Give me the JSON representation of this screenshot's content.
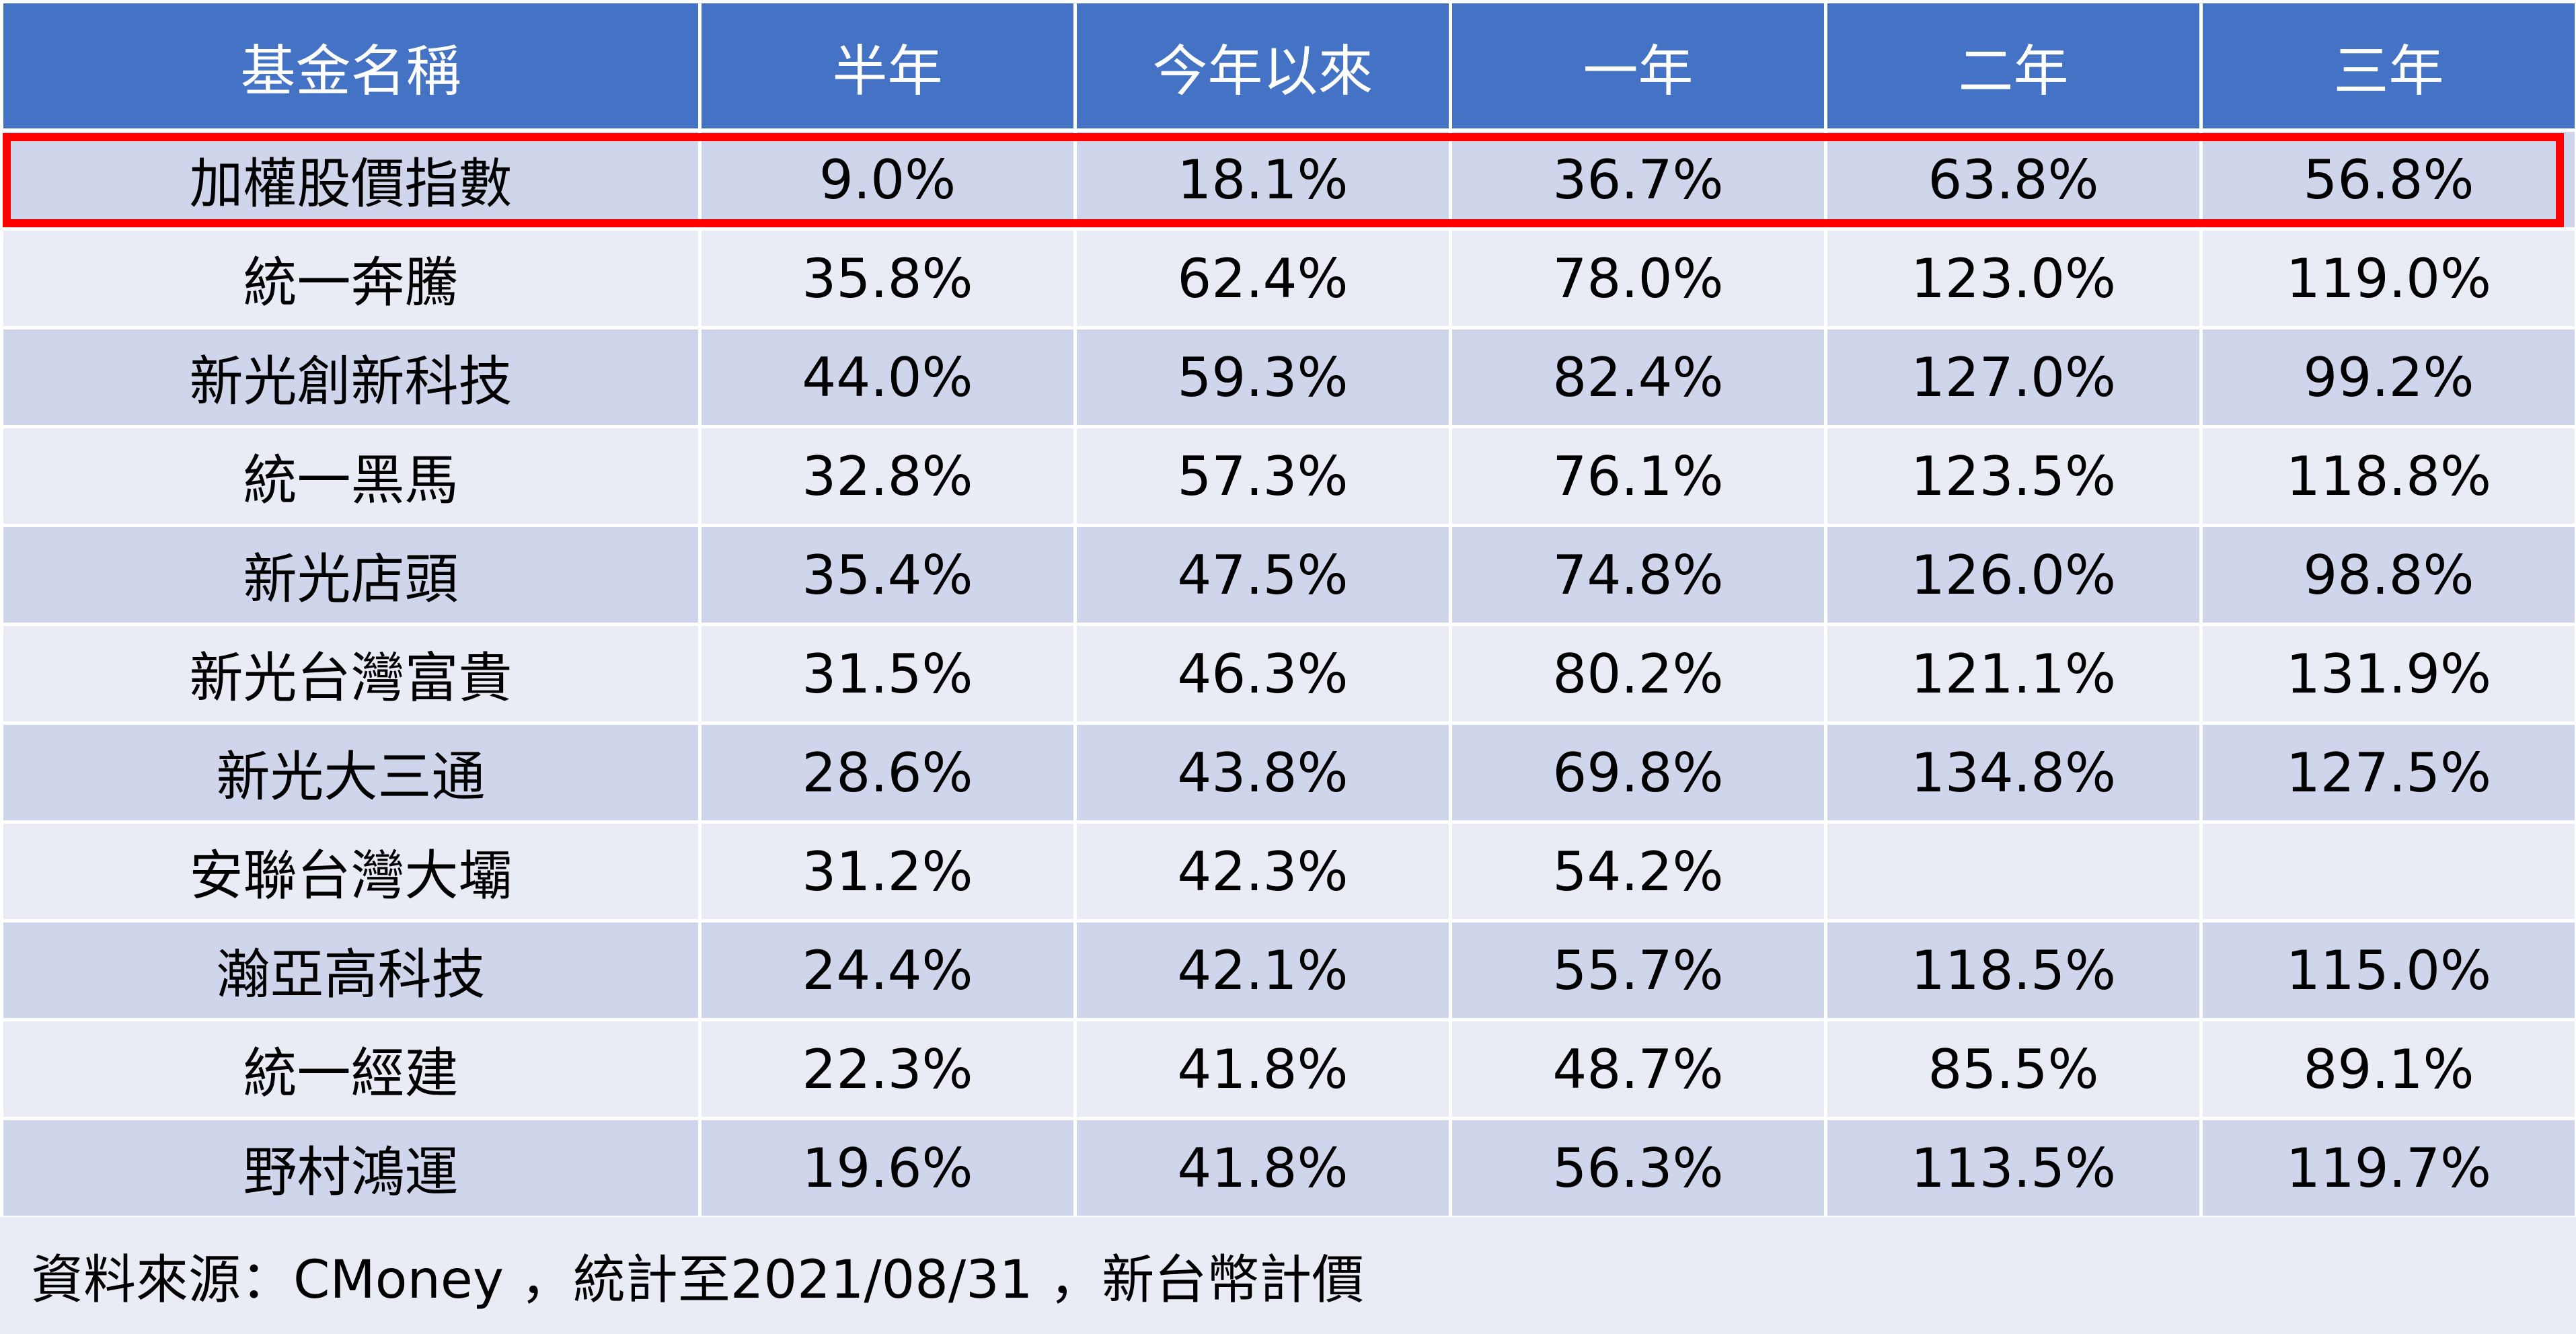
{
  "table": {
    "headers": [
      "基金名稱",
      "半年",
      "今年以來",
      "一年",
      "二年",
      "三年"
    ],
    "rows": [
      [
        "加權股價指數",
        "9.0%",
        "18.1%",
        "36.7%",
        "63.8%",
        "56.8%"
      ],
      [
        "統一奔騰",
        "35.8%",
        "62.4%",
        "78.0%",
        "123.0%",
        "119.0%"
      ],
      [
        "新光創新科技",
        "44.0%",
        "59.3%",
        "82.4%",
        "127.0%",
        "99.2%"
      ],
      [
        "統一黑馬",
        "32.8%",
        "57.3%",
        "76.1%",
        "123.5%",
        "118.8%"
      ],
      [
        "新光店頭",
        "35.4%",
        "47.5%",
        "74.8%",
        "126.0%",
        "98.8%"
      ],
      [
        "新光台灣富貴",
        "31.5%",
        "46.3%",
        "80.2%",
        "121.1%",
        "131.9%"
      ],
      [
        "新光大三通",
        "28.6%",
        "43.8%",
        "69.8%",
        "134.8%",
        "127.5%"
      ],
      [
        "安聯台灣大壩",
        "31.2%",
        "42.3%",
        "54.2%",
        "",
        ""
      ],
      [
        "瀚亞高科技",
        "24.4%",
        "42.1%",
        "55.7%",
        "118.5%",
        "115.0%"
      ],
      [
        "統一經建",
        "22.3%",
        "41.8%",
        "48.7%",
        "85.5%",
        "89.1%"
      ],
      [
        "野村鴻運",
        "19.6%",
        "41.8%",
        "56.3%",
        "113.5%",
        "119.7%"
      ]
    ],
    "highlighted_row": 0
  },
  "footer": {
    "source_note": "資料來源：CMoney ，統計至2021/08/31 ，新台幣計價"
  },
  "colors": {
    "header_bg": "#4472c4",
    "row_odd_bg": "#cfd5ea",
    "row_even_bg": "#e9ebf5",
    "highlight_border": "#ff0000"
  }
}
